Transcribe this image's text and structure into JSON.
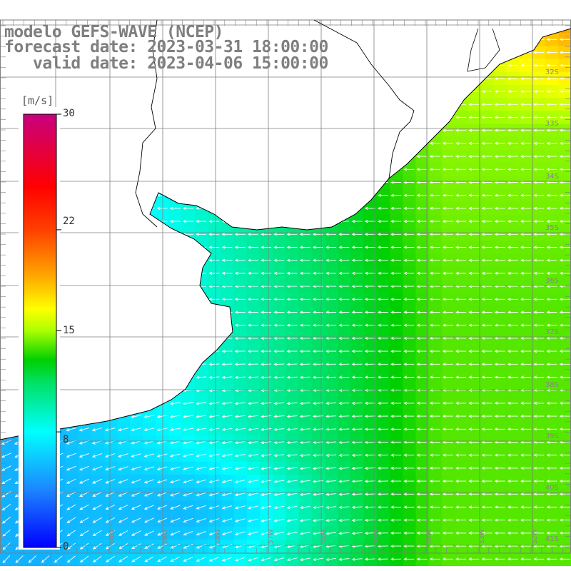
{
  "title": {
    "line1": "modelo GEFS-WAVE (NCEP)",
    "line2": "forecast date: 2023-03-31 18:00:00",
    "line3": "   valid date: 2023-04-06 15:00:00"
  },
  "colorbar": {
    "unit": "[m/s]",
    "labels": [
      {
        "text": "30",
        "value": 30
      },
      {
        "text": "22",
        "value": 22
      },
      {
        "text": "15",
        "value": 15
      },
      {
        "text": "8",
        "value": 8
      },
      {
        "text": "0",
        "value": 0
      }
    ],
    "range": [
      0,
      30
    ],
    "stops": [
      {
        "value": 0,
        "color": "#0000ff"
      },
      {
        "value": 4,
        "color": "#1c86ff"
      },
      {
        "value": 8,
        "color": "#00ffff"
      },
      {
        "value": 11.5,
        "color": "#00e060"
      },
      {
        "value": 13,
        "color": "#00d000"
      },
      {
        "value": 15,
        "color": "#aaff00"
      },
      {
        "value": 16.5,
        "color": "#ffff00"
      },
      {
        "value": 19,
        "color": "#ffa000"
      },
      {
        "value": 22,
        "color": "#ff4000"
      },
      {
        "value": 25,
        "color": "#ff0000"
      },
      {
        "value": 30,
        "color": "#c8007f"
      }
    ]
  },
  "latitude_labels": [
    "32S",
    "33S",
    "34S",
    "35S",
    "36S",
    "37S",
    "38S",
    "39S",
    "40S",
    "41S"
  ],
  "longitude_labels": [
    "61W",
    "60W",
    "59W",
    "58W",
    "57W",
    "56W",
    "55W",
    "54W",
    "53W",
    "52W"
  ],
  "colors": {
    "land": "#ffffff",
    "grid": "#7f7f7f",
    "coast": "#000000",
    "arrow": "#ffffff",
    "title": "#7f7f7f"
  },
  "field": {
    "wind_direction": "from east / north-east",
    "speed_range_m_s": [
      4,
      20
    ]
  }
}
